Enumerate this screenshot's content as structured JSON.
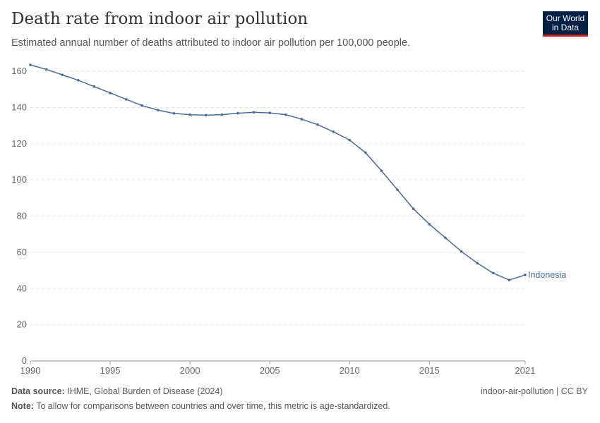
{
  "header": {
    "title": "Death rate from indoor air pollution",
    "subtitle": "Estimated annual number of deaths attributed to indoor air pollution per 100,000 people.",
    "logo": "Our World in Data"
  },
  "footer": {
    "source_label": "Data source:",
    "source": "IHME, Global Burden of Disease (2024)",
    "note_label": "Note:",
    "note": "To allow for comparisons between countries and over time, this metric is age-standardized.",
    "slug": "indoor-air-pollution | CC BY"
  },
  "chart_data": {
    "type": "line",
    "title": "Death rate from indoor air pollution",
    "xlim": [
      1990,
      2021
    ],
    "ylim": [
      0,
      160
    ],
    "xticks": [
      1990,
      1995,
      2000,
      2005,
      2010,
      2015,
      2021
    ],
    "yticks": [
      0,
      20,
      40,
      60,
      80,
      100,
      120,
      140,
      160
    ],
    "grid": true,
    "series_color": "#4c6a9c",
    "series": [
      {
        "name": "Indonesia",
        "x": [
          1990,
          1991,
          1992,
          1993,
          1994,
          1995,
          1996,
          1997,
          1998,
          1999,
          2000,
          2001,
          2002,
          2003,
          2004,
          2005,
          2006,
          2007,
          2008,
          2009,
          2010,
          2011,
          2012,
          2013,
          2014,
          2015,
          2016,
          2017,
          2018,
          2019,
          2020,
          2021
        ],
        "values": [
          163.5,
          161,
          158,
          155,
          151.5,
          148,
          144.5,
          141,
          138.5,
          136.7,
          136,
          135.7,
          136,
          136.8,
          137.3,
          137,
          136,
          133.5,
          130.5,
          126.5,
          122,
          115,
          105,
          94.5,
          84,
          75.5,
          68,
          60.5,
          54,
          48.5,
          44.7,
          47.5
        ]
      }
    ]
  }
}
